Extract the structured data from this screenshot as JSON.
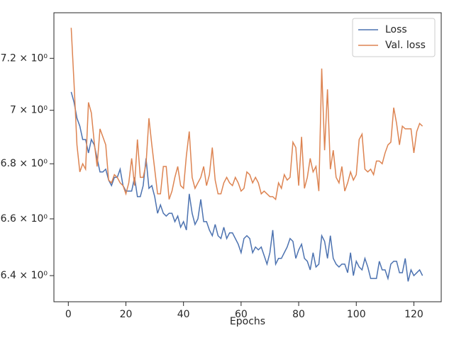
{
  "chart_data": {
    "type": "line",
    "xlabel": "Epochs",
    "x": [
      1,
      2,
      3,
      4,
      5,
      6,
      7,
      8,
      9,
      10,
      11,
      12,
      13,
      14,
      15,
      16,
      17,
      18,
      19,
      20,
      21,
      22,
      23,
      24,
      25,
      26,
      27,
      28,
      29,
      30,
      31,
      32,
      33,
      34,
      35,
      36,
      37,
      38,
      39,
      40,
      41,
      42,
      43,
      44,
      45,
      46,
      47,
      48,
      49,
      50,
      51,
      52,
      53,
      54,
      55,
      56,
      57,
      58,
      59,
      60,
      61,
      62,
      63,
      64,
      65,
      66,
      67,
      68,
      69,
      70,
      71,
      72,
      73,
      74,
      75,
      76,
      77,
      78,
      79,
      80,
      81,
      82,
      83,
      84,
      85,
      86,
      87,
      88,
      89,
      90,
      91,
      92,
      93,
      94,
      95,
      96,
      97,
      98,
      99,
      100,
      101,
      102,
      103,
      104,
      105,
      106,
      107,
      108,
      109,
      110,
      111,
      112,
      113,
      114,
      115,
      116,
      117,
      118,
      119,
      120,
      121,
      122,
      123
    ],
    "series": [
      {
        "name": "Loss",
        "color": "#4c72b0",
        "values": [
          7.07,
          7.03,
          6.97,
          6.94,
          6.89,
          6.89,
          6.84,
          6.89,
          6.87,
          6.82,
          6.77,
          6.77,
          6.78,
          6.74,
          6.72,
          6.75,
          6.75,
          6.78,
          6.72,
          6.7,
          6.7,
          6.7,
          6.75,
          6.68,
          6.68,
          6.72,
          6.82,
          6.71,
          6.72,
          6.68,
          6.62,
          6.65,
          6.62,
          6.61,
          6.62,
          6.62,
          6.59,
          6.61,
          6.57,
          6.59,
          6.56,
          6.69,
          6.62,
          6.58,
          6.6,
          6.67,
          6.59,
          6.59,
          6.56,
          6.54,
          6.58,
          6.54,
          6.53,
          6.57,
          6.53,
          6.55,
          6.55,
          6.53,
          6.51,
          6.48,
          6.53,
          6.54,
          6.53,
          6.48,
          6.5,
          6.49,
          6.5,
          6.47,
          6.44,
          6.48,
          6.56,
          6.44,
          6.46,
          6.46,
          6.48,
          6.5,
          6.53,
          6.52,
          6.46,
          6.49,
          6.51,
          6.46,
          6.45,
          6.42,
          6.48,
          6.43,
          6.44,
          6.54,
          6.52,
          6.46,
          6.54,
          6.46,
          6.44,
          6.43,
          6.44,
          6.44,
          6.41,
          6.48,
          6.4,
          6.45,
          6.43,
          6.42,
          6.46,
          6.43,
          6.39,
          6.39,
          6.39,
          6.45,
          6.42,
          6.42,
          6.39,
          6.44,
          6.45,
          6.45,
          6.41,
          6.41,
          6.46,
          6.38,
          6.42,
          6.4,
          6.41,
          6.42,
          6.4
        ]
      },
      {
        "name": "Val. loss",
        "color": "#dd8452",
        "values": [
          7.32,
          7.1,
          6.87,
          6.77,
          6.8,
          6.78,
          7.03,
          6.99,
          6.88,
          6.79,
          6.93,
          6.9,
          6.87,
          6.74,
          6.73,
          6.76,
          6.75,
          6.73,
          6.72,
          6.69,
          6.73,
          6.82,
          6.72,
          6.89,
          6.75,
          6.75,
          6.8,
          6.97,
          6.87,
          6.78,
          6.69,
          6.69,
          6.79,
          6.79,
          6.67,
          6.7,
          6.75,
          6.79,
          6.72,
          6.71,
          6.83,
          6.92,
          6.75,
          6.71,
          6.73,
          6.75,
          6.79,
          6.72,
          6.76,
          6.86,
          6.74,
          6.69,
          6.69,
          6.73,
          6.75,
          6.73,
          6.72,
          6.75,
          6.73,
          6.7,
          6.71,
          6.77,
          6.76,
          6.73,
          6.75,
          6.73,
          6.69,
          6.7,
          6.69,
          6.68,
          6.68,
          6.67,
          6.73,
          6.71,
          6.76,
          6.74,
          6.75,
          6.88,
          6.86,
          6.72,
          6.9,
          6.71,
          6.75,
          6.82,
          6.77,
          6.79,
          6.7,
          7.16,
          6.85,
          7.08,
          6.78,
          6.85,
          6.75,
          6.73,
          6.79,
          6.7,
          6.73,
          6.77,
          6.74,
          6.76,
          6.89,
          6.91,
          6.78,
          6.77,
          6.78,
          6.76,
          6.81,
          6.81,
          6.8,
          6.84,
          6.87,
          6.88,
          7.01,
          6.95,
          6.87,
          6.94,
          6.93,
          6.93,
          6.93,
          6.84,
          6.92,
          6.95,
          6.94
        ]
      }
    ],
    "xlim": [
      -5,
      129.5
    ],
    "xticks": [
      0,
      20,
      40,
      60,
      80,
      100,
      120
    ],
    "ylim": [
      6.31,
      7.38
    ],
    "ylog": true,
    "yticks": [
      {
        "value": 6.4,
        "label": "6.4 × 10⁰"
      },
      {
        "value": 6.6,
        "label": "6.6 × 10⁰"
      },
      {
        "value": 6.8,
        "label": "6.8 × 10⁰"
      },
      {
        "value": 7.0,
        "label": "7 × 10⁰"
      },
      {
        "value": 7.2,
        "label": "7.2 × 10⁰"
      }
    ],
    "legend": "upper right"
  }
}
